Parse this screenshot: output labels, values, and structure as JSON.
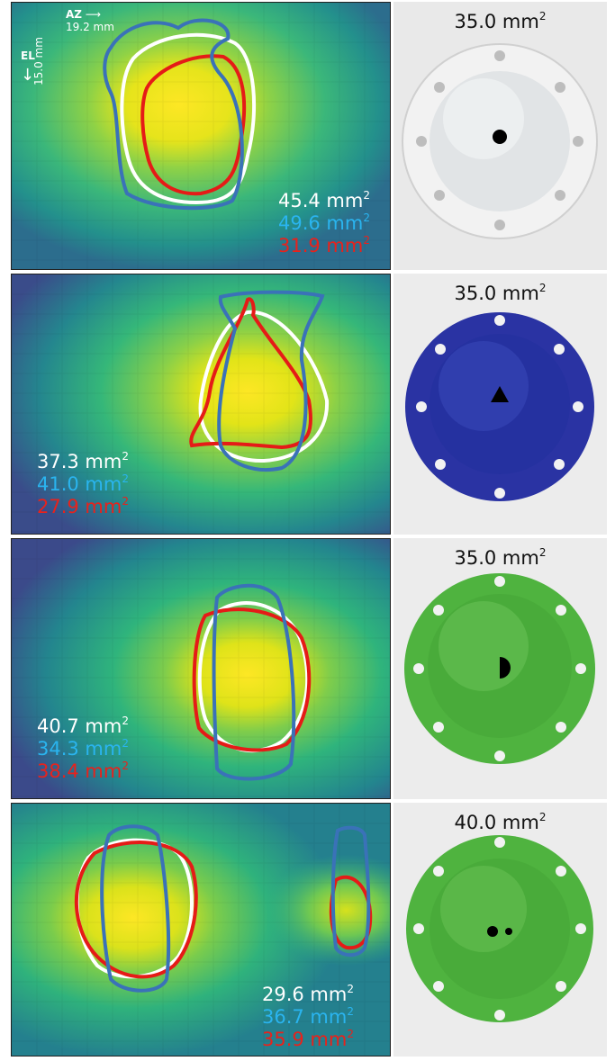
{
  "colors": {
    "grid_outline": "#ffffff",
    "blue_outline": "#3a72b8",
    "red_outline": "#e51b17",
    "white_text": "#ffffff",
    "cyan_text": "#2ab4ef",
    "red_text": "#e8221c",
    "photo_bg": "#e9e9e9",
    "dome_white": "#e1e4e6",
    "dome_blue": "#2a33a3",
    "dome_green": "#4fb33f"
  },
  "scale_bar": {
    "az_label": "AZ",
    "az_size": "19.2 mm",
    "el_label": "EL",
    "el_size": "15.0 mm"
  },
  "panels": [
    {
      "photo_title": "35.0 mm",
      "unit_sup": "2",
      "hole_shape": "circle",
      "areas": [
        {
          "value": "45.4 mm",
          "sup": "2"
        },
        {
          "value": "49.6 mm",
          "sup": "2"
        },
        {
          "value": "31.9 mm",
          "sup": "2"
        }
      ]
    },
    {
      "photo_title": "35.0 mm",
      "unit_sup": "2",
      "hole_shape": "triangle",
      "areas": [
        {
          "value": "37.3 mm",
          "sup": "2"
        },
        {
          "value": "41.0 mm",
          "sup": "2"
        },
        {
          "value": "27.9 mm",
          "sup": "2"
        }
      ]
    },
    {
      "photo_title": "35.0 mm",
      "unit_sup": "2",
      "hole_shape": "half-circle",
      "areas": [
        {
          "value": "40.7 mm",
          "sup": "2"
        },
        {
          "value": "34.3 mm",
          "sup": "2"
        },
        {
          "value": "38.4 mm",
          "sup": "2"
        }
      ]
    },
    {
      "photo_title": "40.0 mm",
      "unit_sup": "2",
      "hole_shape": "two-circles",
      "areas": [
        {
          "value": "29.6 mm",
          "sup": "2"
        },
        {
          "value": "36.7 mm",
          "sup": "2"
        },
        {
          "value": "35.9 mm",
          "sup": "2"
        }
      ]
    }
  ]
}
